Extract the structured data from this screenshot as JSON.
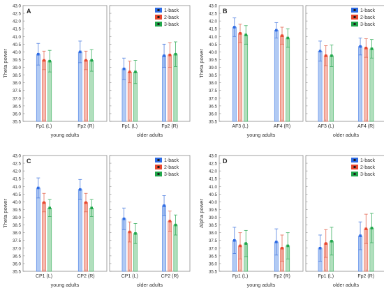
{
  "chart_data": [
    {
      "panel": "A",
      "type": "bar",
      "ylabel": "Theta power",
      "ylim": [
        35.5,
        43.0
      ],
      "yticks": [
        "35.5",
        "36.0",
        "36.5",
        "37.0",
        "37.5",
        "38.0",
        "38.5",
        "39.0",
        "39.5",
        "40.0",
        "40.5",
        "41.0",
        "41.5",
        "42.0",
        "42.5",
        "43.0"
      ],
      "legend": {
        "position": "top-right",
        "entries": [
          "1-back",
          "2-back",
          "3-back"
        ]
      },
      "groups": [
        {
          "label": "young adults",
          "categories": [
            "Fp1 (L)",
            "Fp2 (R)"
          ],
          "series": [
            {
              "values": [
                39.85,
                40.0
              ],
              "errors": [
                0.7,
                0.7
              ]
            },
            {
              "values": [
                39.45,
                39.45
              ],
              "errors": [
                0.6,
                0.6
              ]
            },
            {
              "values": [
                39.4,
                39.45
              ],
              "errors": [
                0.7,
                0.7
              ]
            }
          ]
        },
        {
          "label": "older adults",
          "categories": [
            "Fp1 (L)",
            "Fp2 (R)"
          ],
          "series": [
            {
              "values": [
                38.9,
                39.75
              ],
              "errors": [
                0.7,
                0.75
              ]
            },
            {
              "values": [
                38.7,
                39.8
              ],
              "errors": [
                0.7,
                0.8
              ]
            },
            {
              "values": [
                38.7,
                39.85
              ],
              "errors": [
                0.75,
                0.8
              ]
            }
          ]
        }
      ]
    },
    {
      "panel": "B",
      "type": "bar",
      "ylabel": "Theta power",
      "ylim": [
        35.5,
        43.0
      ],
      "yticks": [
        "35.5",
        "36.0",
        "36.5",
        "37.0",
        "37.5",
        "38.0",
        "38.5",
        "39.0",
        "39.5",
        "40.0",
        "40.5",
        "41.0",
        "41.5",
        "42.0",
        "42.5",
        "43.0"
      ],
      "legend": {
        "position": "top-right",
        "entries": [
          "1-back",
          "2-back",
          "3-back"
        ]
      },
      "groups": [
        {
          "label": "young adults",
          "categories": [
            "AF3 (L)",
            "AF4 (R)"
          ],
          "series": [
            {
              "values": [
                41.6,
                41.4
              ],
              "errors": [
                0.6,
                0.5
              ]
            },
            {
              "values": [
                41.2,
                41.05
              ],
              "errors": [
                0.6,
                0.55
              ]
            },
            {
              "values": [
                41.1,
                40.9
              ],
              "errors": [
                0.6,
                0.6
              ]
            }
          ]
        },
        {
          "label": "older adults",
          "categories": [
            "AF3 (L)",
            "AF4 (R)"
          ],
          "series": [
            {
              "values": [
                40.05,
                40.35
              ],
              "errors": [
                0.65,
                0.55
              ]
            },
            {
              "values": [
                39.75,
                40.25
              ],
              "errors": [
                0.65,
                0.6
              ]
            },
            {
              "values": [
                39.75,
                40.2
              ],
              "errors": [
                0.7,
                0.6
              ]
            }
          ]
        }
      ]
    },
    {
      "panel": "C",
      "type": "bar",
      "ylabel": "Theta power",
      "ylim": [
        35.5,
        43.0
      ],
      "yticks": [
        "35.5",
        "36.0",
        "36.5",
        "37.0",
        "37.5",
        "38.0",
        "38.5",
        "39.0",
        "39.5",
        "40.0",
        "40.5",
        "41.0",
        "41.5",
        "42.0",
        "42.5",
        "43.0"
      ],
      "legend": {
        "position": "top-right",
        "entries": [
          "1-back",
          "2-back",
          "3-back"
        ]
      },
      "groups": [
        {
          "label": "young adults",
          "categories": [
            "CP1 (L)",
            "CP2 (R)"
          ],
          "series": [
            {
              "values": [
                40.9,
                40.8
              ],
              "errors": [
                0.65,
                0.65
              ]
            },
            {
              "values": [
                39.95,
                39.95
              ],
              "errors": [
                0.6,
                0.6
              ]
            },
            {
              "values": [
                39.6,
                39.6
              ],
              "errors": [
                0.55,
                0.55
              ]
            }
          ]
        },
        {
          "label": "older adults",
          "categories": [
            "CP1 (L)",
            "CP2 (R)"
          ],
          "series": [
            {
              "values": [
                38.9,
                39.75
              ],
              "errors": [
                0.7,
                0.65
              ]
            },
            {
              "values": [
                38.05,
                38.75
              ],
              "errors": [
                0.65,
                0.65
              ]
            },
            {
              "values": [
                37.95,
                38.5
              ],
              "errors": [
                0.65,
                0.65
              ]
            }
          ]
        }
      ]
    },
    {
      "panel": "D",
      "type": "bar",
      "ylabel": "Alpha power",
      "ylim": [
        35.5,
        43.0
      ],
      "yticks": [
        "35.5",
        "36.0",
        "36.5",
        "37.0",
        "37.5",
        "38.0",
        "38.5",
        "39.0",
        "39.5",
        "40.0",
        "40.5",
        "41.0",
        "41.5",
        "42.0",
        "42.5",
        "43.0"
      ],
      "legend": {
        "position": "top-right",
        "entries": [
          "1-back",
          "2-back",
          "3-back"
        ]
      },
      "groups": [
        {
          "label": "young adults",
          "categories": [
            "Fp1 (L)",
            "Fp2 (R)"
          ],
          "series": [
            {
              "values": [
                37.5,
                37.4
              ],
              "errors": [
                0.85,
                0.85
              ]
            },
            {
              "values": [
                37.15,
                37.0
              ],
              "errors": [
                0.85,
                0.85
              ]
            },
            {
              "values": [
                37.3,
                37.15
              ],
              "errors": [
                0.85,
                0.85
              ]
            }
          ]
        },
        {
          "label": "older adults",
          "categories": [
            "Fp1 (L)",
            "Fp2 (R)"
          ],
          "series": [
            {
              "values": [
                37.0,
                37.8
              ],
              "errors": [
                0.85,
                0.9
              ]
            },
            {
              "values": [
                37.3,
                38.25
              ],
              "errors": [
                0.9,
                0.95
              ]
            },
            {
              "values": [
                37.45,
                38.3
              ],
              "errors": [
                0.9,
                0.95
              ]
            }
          ]
        }
      ]
    }
  ],
  "colors": {
    "series": [
      "#2d6be4",
      "#e8472e",
      "#1fa64a"
    ],
    "series_light": [
      "#a9c4f2",
      "#f4b4a8",
      "#a8dbb6"
    ],
    "series_err": [
      "#4f7fe0",
      "#e46a55",
      "#3db062"
    ],
    "axis": "#8a8a8a",
    "text": "#333333",
    "grid": "#cfcfcf"
  }
}
